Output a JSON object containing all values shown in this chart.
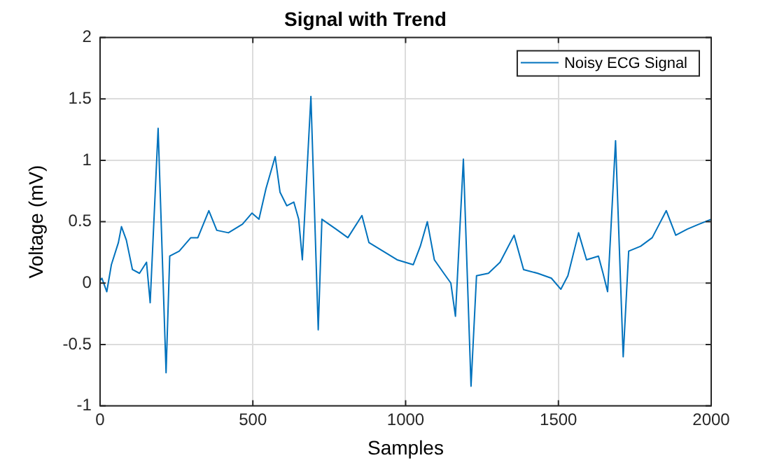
{
  "chart_data": {
    "type": "line",
    "title": "Signal with Trend",
    "xlabel": "Samples",
    "ylabel": "Voltage (mV)",
    "xlim": [
      0,
      2000
    ],
    "xticks": [
      0,
      500,
      1000,
      1500,
      2000
    ],
    "ylim": [
      -1,
      2
    ],
    "yticks": [
      -1,
      -0.5,
      0,
      0.5,
      1,
      1.5,
      2
    ],
    "grid": true,
    "legend": "top right",
    "line_style": "solid",
    "marker": "none",
    "x": [
      0,
      6,
      22,
      37,
      60,
      70,
      86,
      106,
      129,
      152,
      164,
      190,
      216,
      228,
      259,
      297,
      320,
      356,
      382,
      420,
      466,
      497,
      520,
      543,
      573,
      589,
      611,
      634,
      650,
      662,
      690,
      714,
      726,
      772,
      811,
      857,
      880,
      926,
      972,
      1025,
      1048,
      1071,
      1094,
      1125,
      1148,
      1163,
      1189,
      1214,
      1232,
      1271,
      1309,
      1355,
      1386,
      1432,
      1477,
      1508,
      1531,
      1566,
      1592,
      1631,
      1646,
      1661,
      1687,
      1712,
      1730,
      1769,
      1807,
      1830,
      1853,
      1884,
      1922,
      1960,
      2000
    ],
    "series": [
      {
        "name": "Noisy ECG Signal",
        "color": "#0072bd",
        "values": [
          0.02,
          0.04,
          -0.07,
          0.15,
          0.33,
          0.46,
          0.35,
          0.11,
          0.08,
          0.17,
          -0.16,
          1.26,
          -0.73,
          0.22,
          0.26,
          0.37,
          0.37,
          0.59,
          0.43,
          0.41,
          0.48,
          0.57,
          0.52,
          0.77,
          1.03,
          0.74,
          0.63,
          0.66,
          0.52,
          0.19,
          1.52,
          -0.38,
          0.52,
          0.44,
          0.37,
          0.55,
          0.33,
          0.26,
          0.19,
          0.15,
          0.3,
          0.5,
          0.19,
          0.08,
          0,
          -0.27,
          1.01,
          -0.84,
          0.06,
          0.08,
          0.17,
          0.39,
          0.11,
          0.08,
          0.04,
          -0.05,
          0.06,
          0.41,
          0.19,
          0.22,
          0.08,
          -0.07,
          1.16,
          -0.6,
          0.26,
          0.3,
          0.37,
          0.48,
          0.59,
          0.39,
          0.44,
          0.48,
          0.52
        ]
      }
    ]
  }
}
